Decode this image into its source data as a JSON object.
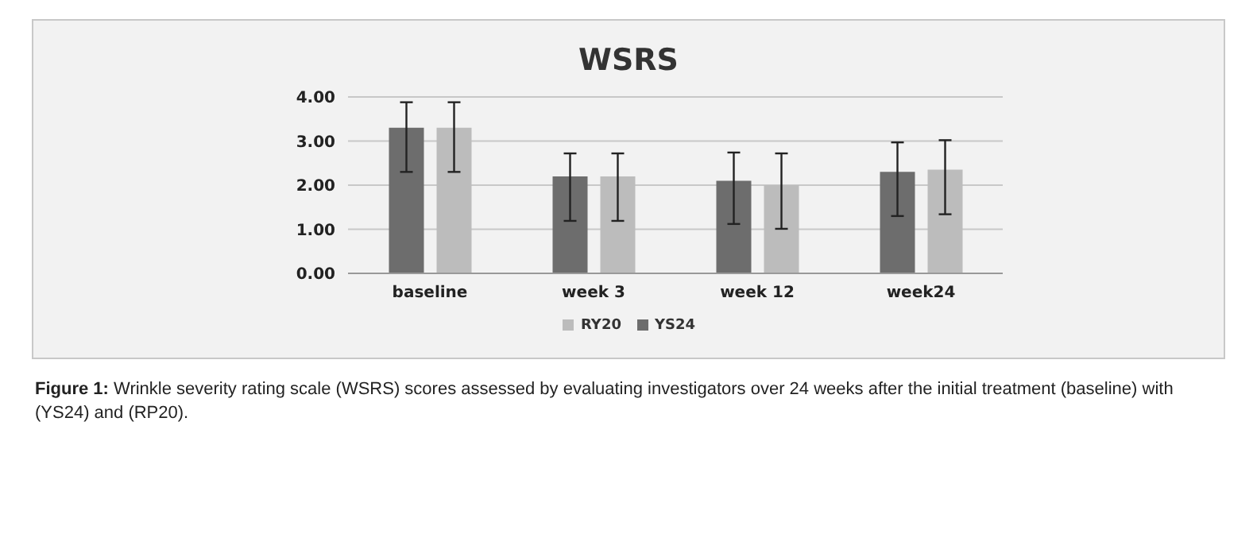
{
  "chart_data": {
    "type": "bar",
    "title": "WSRS",
    "categories": [
      "baseline",
      "week 3",
      "week 12",
      "week24"
    ],
    "series": [
      {
        "name": "YS24",
        "color": "#6d6d6d",
        "values": [
          3.3,
          2.2,
          2.1,
          2.3
        ],
        "errors": [
          [
            2.3,
            3.88
          ],
          [
            1.19,
            2.72
          ],
          [
            1.12,
            2.74
          ],
          [
            1.3,
            2.97
          ]
        ]
      },
      {
        "name": "RY20",
        "color": "#bcbcbc",
        "values": [
          3.3,
          2.2,
          2.0,
          2.35
        ],
        "errors": [
          [
            2.3,
            3.88
          ],
          [
            1.19,
            2.72
          ],
          [
            1.01,
            2.72
          ],
          [
            1.34,
            3.02
          ]
        ]
      }
    ],
    "ylim": [
      0,
      4
    ],
    "yticks": [
      {
        "value": 0,
        "label": "0.00"
      },
      {
        "value": 1,
        "label": "1.00"
      },
      {
        "value": 2,
        "label": "2.00"
      },
      {
        "value": 3,
        "label": "3.00"
      },
      {
        "value": 4,
        "label": "4.00"
      }
    ],
    "grid": "y",
    "legend": "bottom",
    "annotations": [
      "Figure 1: Wrinkle severity rating scale (WSRS) scores assessed by evaluating investigators over 24 weeks after the initial treatment (baseline) with (YS24) and (RP20)."
    ]
  }
}
